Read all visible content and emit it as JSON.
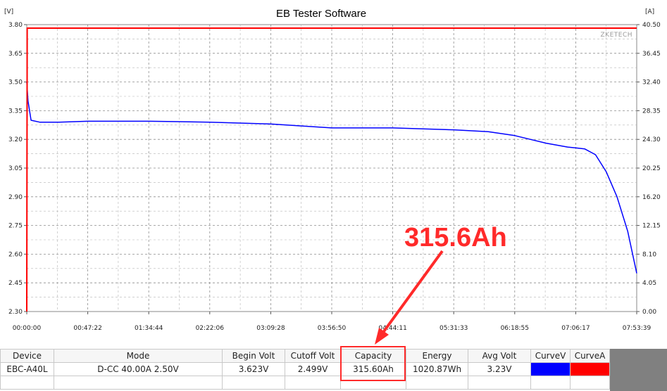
{
  "chart_data": {
    "type": "line",
    "title": "EB Tester Software",
    "ylabel_left": "[V]",
    "ylabel_right": "[A]",
    "watermark": "ZKETECH",
    "x_ticks": [
      "00:00:00",
      "00:47:22",
      "01:34:44",
      "02:22:06",
      "03:09:28",
      "03:56:50",
      "04:44:11",
      "05:31:33",
      "06:18:55",
      "07:06:17",
      "07:53:39"
    ],
    "x_range_seconds": [
      0,
      28419
    ],
    "y_left_ticks": [
      "3.80",
      "3.65",
      "3.50",
      "3.35",
      "3.20",
      "3.05",
      "2.90",
      "2.75",
      "2.60",
      "2.45",
      "2.30"
    ],
    "y_right_ticks": [
      "40.50",
      "36.45",
      "32.40",
      "28.35",
      "24.30",
      "20.25",
      "16.20",
      "12.15",
      "8.10",
      "4.05",
      "0.00"
    ],
    "ylim_left": [
      2.3,
      3.8
    ],
    "ylim_right": [
      0.0,
      40.5
    ],
    "grid": true,
    "series": [
      {
        "name": "CurveV",
        "color": "#0000ff",
        "axis": "left",
        "x_seconds": [
          0,
          60,
          200,
          600,
          1500,
          2842,
          5684,
          8526,
          11400,
          14208,
          17050,
          19893,
          21500,
          22735,
          24200,
          25200,
          25600,
          26000,
          26500,
          27000,
          27500,
          28000,
          28419
        ],
        "values": [
          3.5,
          3.4,
          3.3,
          3.29,
          3.29,
          3.295,
          3.295,
          3.29,
          3.28,
          3.26,
          3.26,
          3.25,
          3.24,
          3.22,
          3.18,
          3.16,
          3.155,
          3.15,
          3.12,
          3.03,
          2.9,
          2.72,
          2.5
        ]
      },
      {
        "name": "CurveA",
        "color": "#ff0000",
        "axis": "right",
        "x_seconds": [
          0,
          20,
          28419
        ],
        "values": [
          0.0,
          40.0,
          40.0
        ]
      }
    ],
    "annotation": "315.6Ah"
  },
  "table": {
    "headers": [
      "Device",
      "Mode",
      "Begin Volt",
      "Cutoff Volt",
      "Capacity",
      "Energy",
      "Avg Volt",
      "CurveV",
      "CurveA"
    ],
    "row": [
      "EBC-A40L",
      "D-CC  40.00A  2.50V",
      "3.623V",
      "2.499V",
      "315.60Ah",
      "1020.87Wh",
      "3.23V"
    ],
    "swatch_colors": {
      "CurveV": "#0000ff",
      "CurveA": "#ff0000"
    },
    "highlight_color": "#ff2a2a"
  }
}
